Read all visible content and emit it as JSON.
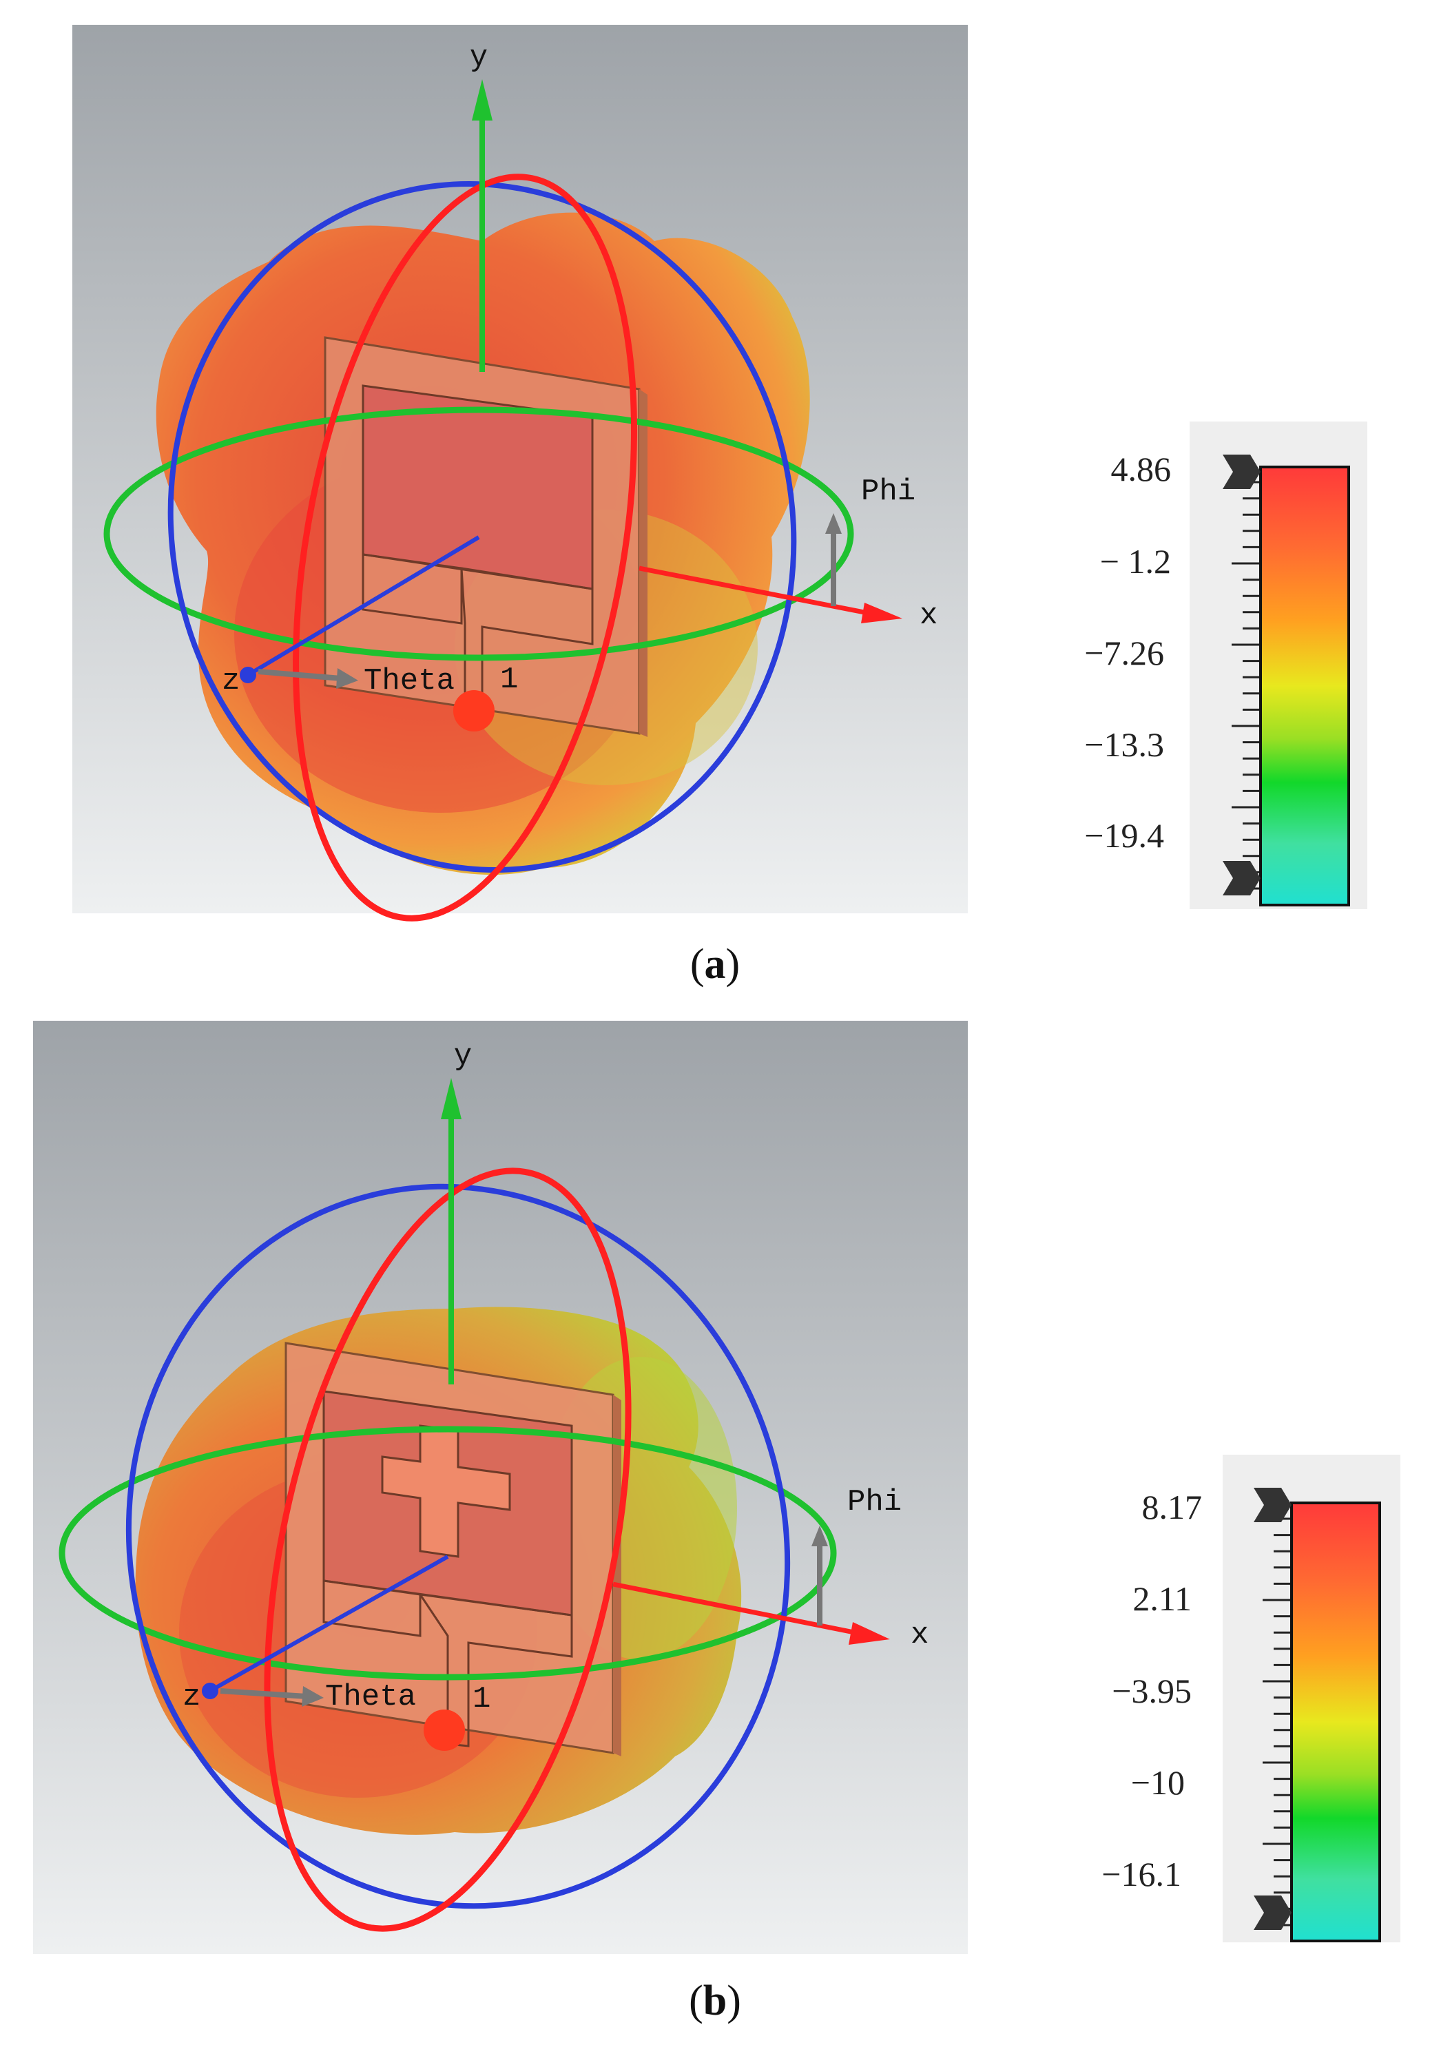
{
  "panels": [
    {
      "id": "a",
      "caption_letter": "a",
      "axis_labels": {
        "y": "y",
        "x": "x",
        "z": "z",
        "theta": "Theta",
        "phi": "Phi",
        "port": "1"
      },
      "colorbar_ticks": [
        "4.86",
        "− 1.2",
        "−7.26",
        "−13.3",
        "−19.4"
      ],
      "patch_shape": "rectangular-patch"
    },
    {
      "id": "b",
      "caption_letter": "b",
      "axis_labels": {
        "y": "y",
        "x": "x",
        "z": "z",
        "theta": "Theta",
        "phi": "Phi",
        "port": "1"
      },
      "colorbar_ticks": [
        "8.17",
        "2.11",
        "−3.95",
        "−10",
        "−16.1"
      ],
      "patch_shape": "cross-slot-patch"
    }
  ],
  "colors": {
    "background_top": "#9ea3a8",
    "background_bottom": "#eef0f1",
    "pattern_red": "#e8523a",
    "pattern_orange": "#f08a3c",
    "pattern_yellow": "#c9d43a",
    "axis_x": "#ff2020",
    "axis_y": "#1fc12f",
    "axis_z": "#2a3ddb",
    "colorbar_stops": [
      "#ff3a3a",
      "#ff7a30",
      "#ffb020",
      "#e8e81e",
      "#9adf24",
      "#12d82a",
      "#20e0c8"
    ]
  }
}
